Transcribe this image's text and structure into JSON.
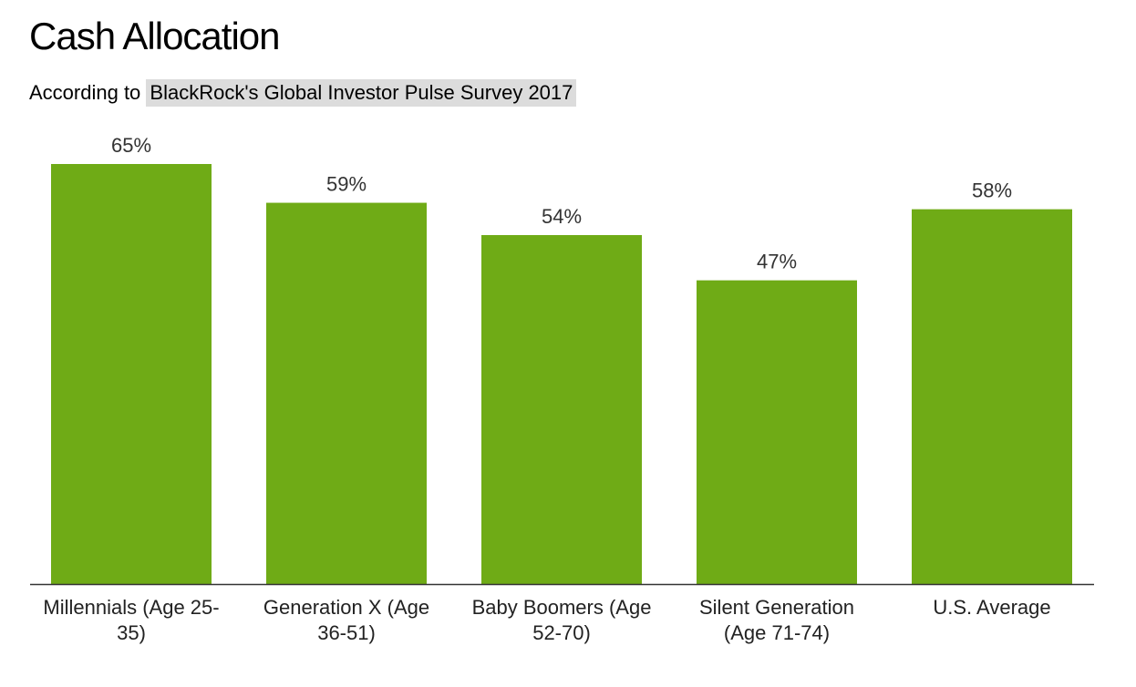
{
  "header": {
    "title": "Cash Allocation",
    "subtitle_prefix": "According to ",
    "subtitle_link": "BlackRock's Global Investor Pulse Survey 2017"
  },
  "colors": {
    "bar": "#6fab16",
    "axis": "#333333",
    "label": "#333333",
    "link_highlight": "#dcdcdc"
  },
  "chart_data": {
    "type": "bar",
    "title": "Cash Allocation",
    "subtitle": "According to BlackRock's Global Investor Pulse Survey 2017",
    "categories": [
      "Millennials (Age 25-35)",
      "Generation X (Age 36-51)",
      "Baby Boomers (Age 52-70)",
      "Silent Generation (Age 71-74)",
      "U.S. Average"
    ],
    "values": [
      65,
      59,
      54,
      47,
      58
    ],
    "data_labels": [
      "65%",
      "59%",
      "54%",
      "47%",
      "58%"
    ],
    "unit": "%",
    "ylim": [
      0,
      65
    ],
    "grid": false,
    "legend": "none",
    "xlabel": "",
    "ylabel": ""
  }
}
